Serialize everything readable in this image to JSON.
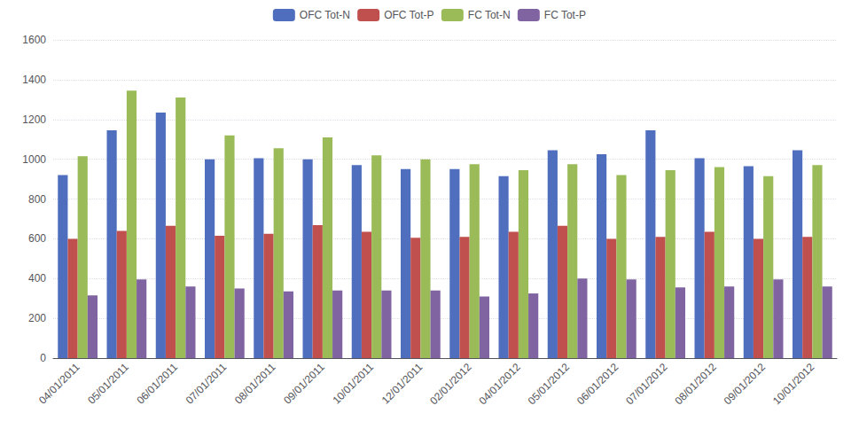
{
  "chart_data": {
    "type": "bar",
    "categories": [
      "04/01/2011",
      "05/01/2011",
      "06/01/2011",
      "07/01/2011",
      "08/01/2011",
      "09/01/2011",
      "10/01/2011",
      "12/01/2011",
      "02/01/2012",
      "04/01/2012",
      "05/01/2012",
      "06/01/2012",
      "07/01/2012",
      "08/01/2012",
      "09/01/2012",
      "10/01/2012"
    ],
    "series": [
      {
        "name": "OFC Tot-N",
        "color": "#4f6ebe",
        "values": [
          920,
          1145,
          1235,
          1000,
          1005,
          1000,
          970,
          950,
          950,
          915,
          1045,
          1025,
          1145,
          1005,
          965,
          1045
        ]
      },
      {
        "name": "OFC Tot-P",
        "color": "#c0504d",
        "values": [
          600,
          640,
          665,
          615,
          625,
          668,
          635,
          605,
          610,
          635,
          665,
          600,
          610,
          635,
          600,
          610
        ]
      },
      {
        "name": "FC Tot-N",
        "color": "#9bbb59",
        "values": [
          1015,
          1345,
          1310,
          1120,
          1055,
          1110,
          1020,
          1000,
          975,
          945,
          975,
          920,
          945,
          960,
          915,
          970
        ]
      },
      {
        "name": "FC Tot-P",
        "color": "#8064a2",
        "values": [
          315,
          395,
          360,
          350,
          335,
          340,
          340,
          340,
          310,
          325,
          400,
          395,
          355,
          360,
          395,
          360
        ]
      }
    ],
    "ylim": [
      0,
      1600
    ],
    "yticks": [
      0,
      200,
      400,
      600,
      800,
      1000,
      1200,
      1400,
      1600
    ],
    "grid": true,
    "legend": "top"
  }
}
